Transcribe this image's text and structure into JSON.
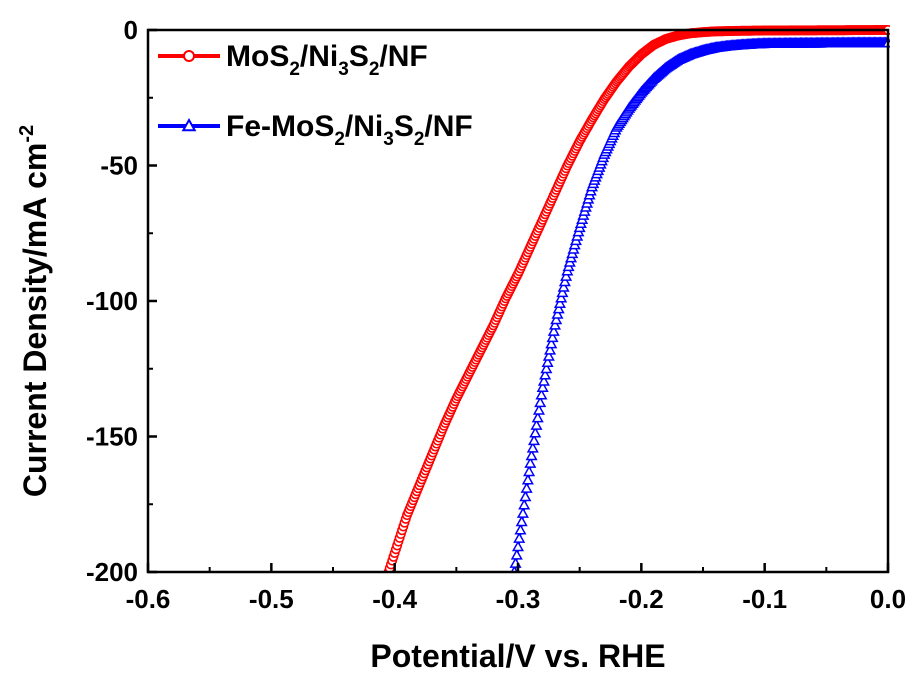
{
  "chart_data": {
    "type": "line",
    "title": "",
    "xlabel": "Potential/V vs. RHE",
    "ylabel": "Current Density/mA cm",
    "ylabel_sup": "-2",
    "xlim": [
      -0.6,
      0.0
    ],
    "ylim": [
      -200,
      0
    ],
    "xticks": [
      "-0.6",
      "-0.5",
      "-0.4",
      "-0.3",
      "-0.2",
      "-0.1",
      "0.0"
    ],
    "yticks": [
      "0",
      "-50",
      "-100",
      "-150",
      "-200"
    ],
    "legend_position": "top-left",
    "grid": false,
    "series": [
      {
        "name": "MoS2/Ni3S2/NF",
        "name_parts": [
          [
            "MoS",
            ""
          ],
          [
            "2",
            "sub"
          ],
          [
            "/Ni",
            ""
          ],
          [
            "3",
            "sub"
          ],
          [
            "S",
            ""
          ],
          [
            "2",
            "sub"
          ],
          [
            "/NF",
            ""
          ]
        ],
        "color": "#ff0000",
        "marker": "circle",
        "x": [
          -0.405,
          -0.39,
          -0.38,
          -0.37,
          -0.36,
          -0.35,
          -0.34,
          -0.33,
          -0.32,
          -0.31,
          -0.3,
          -0.29,
          -0.28,
          -0.27,
          -0.26,
          -0.25,
          -0.24,
          -0.23,
          -0.22,
          -0.21,
          -0.2,
          -0.19,
          -0.18,
          -0.17,
          -0.16,
          -0.15,
          -0.14,
          -0.12,
          -0.1,
          -0.05,
          0.0
        ],
        "y": [
          -200,
          -179,
          -168,
          -157,
          -146,
          -136,
          -127,
          -118,
          -109,
          -99,
          -90,
          -80,
          -70,
          -60,
          -50,
          -41,
          -33,
          -25.5,
          -19,
          -13.5,
          -9,
          -5.5,
          -3.3,
          -2,
          -1.2,
          -0.8,
          -0.5,
          -0.3,
          -0.2,
          -0.1,
          0
        ]
      },
      {
        "name": "Fe-MoS2/Ni3S2/NF",
        "name_parts": [
          [
            "Fe-MoS",
            ""
          ],
          [
            "2",
            "sub"
          ],
          [
            "/Ni",
            ""
          ],
          [
            "3",
            "sub"
          ],
          [
            "S",
            ""
          ],
          [
            "2",
            "sub"
          ],
          [
            "/NF",
            ""
          ]
        ],
        "color": "#0000ff",
        "marker": "triangle",
        "x": [
          -0.303,
          -0.29,
          -0.28,
          -0.27,
          -0.26,
          -0.25,
          -0.24,
          -0.23,
          -0.22,
          -0.21,
          -0.2,
          -0.19,
          -0.18,
          -0.17,
          -0.16,
          -0.15,
          -0.14,
          -0.13,
          -0.12,
          -0.11,
          -0.1,
          -0.08,
          -0.05,
          -0.02,
          0.0
        ],
        "y": [
          -200,
          -160,
          -132,
          -109,
          -89,
          -73,
          -58,
          -46,
          -36,
          -29,
          -23,
          -18,
          -14,
          -11,
          -9,
          -7.6,
          -6.6,
          -6,
          -5.6,
          -5.3,
          -5.1,
          -5,
          -4.9,
          -4.8,
          -4.8
        ]
      }
    ]
  }
}
